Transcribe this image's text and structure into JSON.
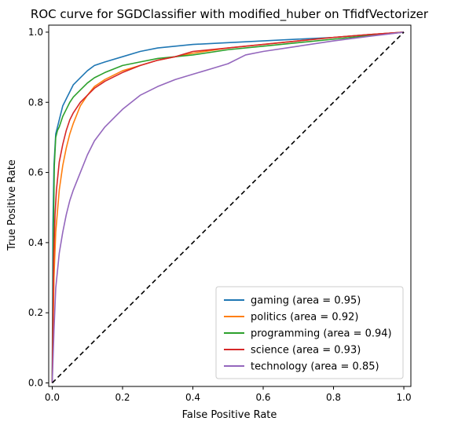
{
  "chart_data": {
    "type": "line",
    "title": "ROC curve for SGDClassifier with modified_huber on TfidfVectorizer",
    "xlabel": "False Positive Rate",
    "ylabel": "True Positive Rate",
    "xlim": [
      -0.01,
      1.02
    ],
    "ylim": [
      -0.01,
      1.02
    ],
    "xticks": [
      0.0,
      0.2,
      0.4,
      0.6,
      0.8,
      1.0
    ],
    "yticks": [
      0.0,
      0.2,
      0.4,
      0.6,
      0.8,
      1.0
    ],
    "xtick_labels": [
      "0.0",
      "0.2",
      "0.4",
      "0.6",
      "0.8",
      "1.0"
    ],
    "ytick_labels": [
      "0.0",
      "0.2",
      "0.4",
      "0.6",
      "0.8",
      "1.0"
    ],
    "grid": false,
    "legend_position": "lower-right",
    "diagonal": {
      "x": [
        0,
        1
      ],
      "y": [
        0,
        1
      ],
      "style": "dashed",
      "color": "#000000"
    },
    "series": [
      {
        "name": "gaming (area = 0.95)",
        "color": "#1f77b4",
        "x": [
          0,
          0.002,
          0.005,
          0.01,
          0.015,
          0.02,
          0.03,
          0.04,
          0.05,
          0.06,
          0.08,
          0.1,
          0.12,
          0.15,
          0.2,
          0.25,
          0.3,
          0.35,
          0.4,
          0.5,
          0.6,
          0.7,
          0.8,
          0.9,
          1.0
        ],
        "y": [
          0,
          0.45,
          0.62,
          0.71,
          0.73,
          0.75,
          0.79,
          0.81,
          0.83,
          0.85,
          0.87,
          0.89,
          0.905,
          0.915,
          0.93,
          0.945,
          0.955,
          0.96,
          0.965,
          0.97,
          0.975,
          0.98,
          0.985,
          0.993,
          1.0
        ]
      },
      {
        "name": "politics (area = 0.92)",
        "color": "#ff7f0e",
        "x": [
          0,
          0.005,
          0.01,
          0.02,
          0.03,
          0.04,
          0.05,
          0.06,
          0.08,
          0.1,
          0.12,
          0.15,
          0.2,
          0.25,
          0.3,
          0.35,
          0.4,
          0.5,
          0.6,
          0.7,
          0.8,
          0.9,
          1.0
        ],
        "y": [
          0,
          0.3,
          0.43,
          0.55,
          0.62,
          0.67,
          0.71,
          0.74,
          0.79,
          0.82,
          0.845,
          0.865,
          0.89,
          0.905,
          0.92,
          0.93,
          0.94,
          0.955,
          0.965,
          0.975,
          0.985,
          0.993,
          1.0
        ]
      },
      {
        "name": "programming (area = 0.94)",
        "color": "#2ca02c",
        "x": [
          0,
          0.003,
          0.006,
          0.01,
          0.015,
          0.02,
          0.03,
          0.04,
          0.05,
          0.06,
          0.08,
          0.1,
          0.12,
          0.15,
          0.2,
          0.25,
          0.3,
          0.35,
          0.4,
          0.5,
          0.6,
          0.7,
          0.8,
          0.9,
          1.0
        ],
        "y": [
          0,
          0.4,
          0.62,
          0.7,
          0.72,
          0.73,
          0.76,
          0.78,
          0.8,
          0.815,
          0.835,
          0.855,
          0.87,
          0.885,
          0.905,
          0.915,
          0.925,
          0.93,
          0.935,
          0.95,
          0.96,
          0.97,
          0.98,
          0.99,
          1.0
        ]
      },
      {
        "name": "science (area = 0.93)",
        "color": "#d62728",
        "x": [
          0,
          0.004,
          0.008,
          0.012,
          0.02,
          0.03,
          0.04,
          0.05,
          0.06,
          0.08,
          0.1,
          0.12,
          0.15,
          0.2,
          0.25,
          0.3,
          0.35,
          0.4,
          0.5,
          0.6,
          0.7,
          0.8,
          0.9,
          1.0
        ],
        "y": [
          0,
          0.35,
          0.48,
          0.55,
          0.63,
          0.68,
          0.72,
          0.75,
          0.77,
          0.8,
          0.82,
          0.84,
          0.86,
          0.885,
          0.905,
          0.92,
          0.93,
          0.945,
          0.955,
          0.965,
          0.975,
          0.985,
          0.993,
          1.0
        ]
      },
      {
        "name": "technology (area = 0.85)",
        "color": "#9467bd",
        "x": [
          0,
          0.005,
          0.01,
          0.02,
          0.03,
          0.04,
          0.05,
          0.06,
          0.08,
          0.1,
          0.12,
          0.15,
          0.18,
          0.2,
          0.25,
          0.3,
          0.35,
          0.4,
          0.45,
          0.5,
          0.55,
          0.6,
          0.7,
          0.8,
          0.9,
          1.0
        ],
        "y": [
          0,
          0.15,
          0.27,
          0.37,
          0.43,
          0.48,
          0.52,
          0.55,
          0.6,
          0.65,
          0.69,
          0.73,
          0.76,
          0.78,
          0.82,
          0.845,
          0.865,
          0.88,
          0.895,
          0.91,
          0.935,
          0.945,
          0.96,
          0.975,
          0.988,
          1.0
        ]
      }
    ]
  }
}
